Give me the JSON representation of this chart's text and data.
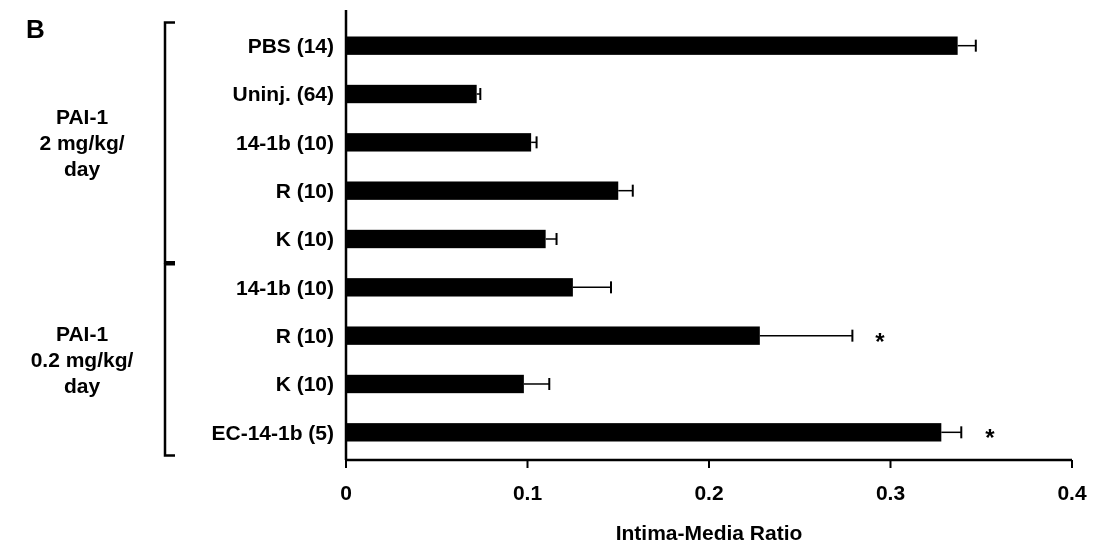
{
  "chart_data": {
    "type": "bar",
    "orientation": "horizontal",
    "title": "B",
    "xlabel": "Intima-Media Ratio",
    "categories": [
      "PBS (14)",
      "Uninj. (64)",
      "14-1b (10)",
      "R (10)",
      "K (10)",
      "14-1b (10)",
      "R (10)",
      "K (10)",
      "EC-14-1b (5)"
    ],
    "values": [
      0.337,
      0.072,
      0.102,
      0.15,
      0.11,
      0.125,
      0.228,
      0.098,
      0.328
    ],
    "errors": [
      [
        0.337,
        0.347
      ],
      [
        0.072,
        0.074
      ],
      [
        0.102,
        0.105
      ],
      [
        0.15,
        0.158
      ],
      [
        0.11,
        0.116
      ],
      [
        0.125,
        0.146
      ],
      [
        0.228,
        0.279
      ],
      [
        0.098,
        0.112
      ],
      [
        0.328,
        0.339
      ]
    ],
    "color": "#000000",
    "xlim": [
      0,
      0.4
    ],
    "xticks": [
      0,
      0.1,
      0.2,
      0.3,
      0.4
    ],
    "grid": false,
    "annotations": [
      "*",
      "*",
      "PAI-1\n2 mg/kg/\nday",
      "PAI-1\n0.2 mg/kg/\nday"
    ]
  }
}
